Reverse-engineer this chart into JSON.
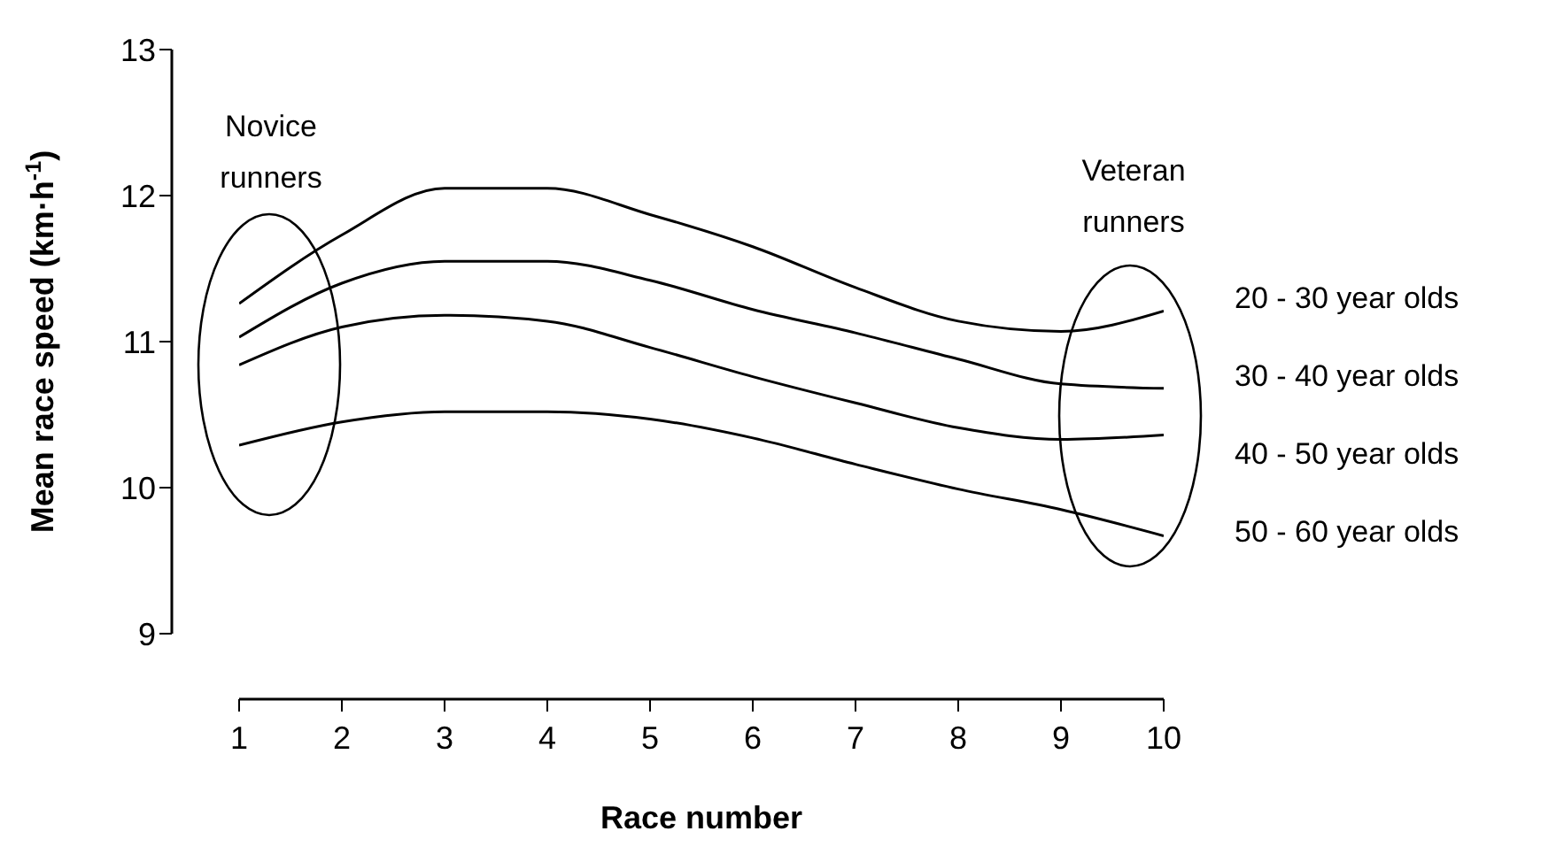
{
  "chart_data": {
    "type": "line",
    "xlabel": "Race number",
    "ylabel": "Mean race speed (km·h$^{-1}$)",
    "x": [
      1,
      2,
      3,
      4,
      5,
      6,
      7,
      8,
      9,
      10
    ],
    "xlim": [
      1,
      10
    ],
    "xticks": [
      1,
      2,
      3,
      4,
      5,
      6,
      7,
      8,
      9,
      10
    ],
    "ylim": [
      9,
      13
    ],
    "yticks": [
      9,
      10,
      11,
      12,
      13
    ],
    "grid": false,
    "legend": false,
    "marker": "none",
    "line_style": "solid",
    "series": [
      {
        "name": "20 - 30 year olds",
        "color": "#000000",
        "values": [
          11.26,
          11.73,
          12.05,
          12.05,
          11.87,
          11.65,
          11.37,
          11.14,
          11.07,
          11.21
        ]
      },
      {
        "name": "30 - 40 year olds",
        "color": "#000000",
        "values": [
          11.03,
          11.4,
          11.55,
          11.55,
          11.42,
          11.22,
          11.06,
          10.88,
          10.71,
          10.68
        ]
      },
      {
        "name": "40 - 50 year olds",
        "color": "#000000",
        "values": [
          10.84,
          11.1,
          11.18,
          11.14,
          10.96,
          10.76,
          10.58,
          10.41,
          10.33,
          10.36
        ]
      },
      {
        "name": "50 - 60 year olds",
        "color": "#000000",
        "values": [
          10.29,
          10.45,
          10.52,
          10.52,
          10.47,
          10.34,
          10.16,
          9.99,
          9.85,
          9.67
        ]
      }
    ],
    "annotations": [
      "Novice runners",
      "Veteran runners"
    ]
  }
}
